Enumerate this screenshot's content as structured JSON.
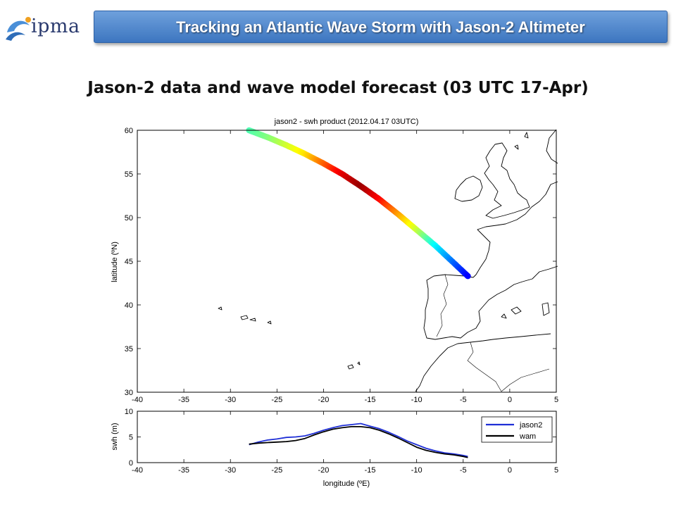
{
  "header": {
    "logo_text": "ipma",
    "banner_title": "Tracking an Atlantic Wave Storm with Jason-2 Altimeter"
  },
  "slide_title": "Jason-2 data and wave model forecast (03 UTC 17-Apr)",
  "colors": {
    "banner_top": "#6ea0dc",
    "banner_bottom": "#3d76c0",
    "jason2_line": "#1f2fd6",
    "wam_line": "#000000",
    "coastline": "#000000"
  },
  "chart_data": [
    {
      "type": "scatter",
      "title": "jason2 - swh product (2012.04.17 03UTC)",
      "xlabel": "",
      "ylabel": "latitude (ºN)",
      "xlim": [
        -40,
        5
      ],
      "ylim": [
        30,
        60
      ],
      "xticks": [
        "-40",
        "-35",
        "-30",
        "-25",
        "-20",
        "-15",
        "-10",
        "-5",
        "0",
        "5"
      ],
      "yticks": [
        "30",
        "35",
        "40",
        "45",
        "50",
        "55",
        "60"
      ],
      "grid": false,
      "colormap": "jet",
      "color_value_range": [
        0,
        8
      ],
      "track": {
        "x": [
          -28.0,
          -26.0,
          -24.0,
          -22.0,
          -20.0,
          -18.0,
          -16.0,
          -14.0,
          -12.0,
          -10.0,
          -8.0,
          -6.0,
          -4.5
        ],
        "y": [
          60.0,
          59.2,
          58.3,
          57.3,
          56.2,
          55.0,
          53.6,
          52.1,
          50.4,
          48.6,
          46.8,
          44.8,
          43.3
        ],
        "swh": [
          3.6,
          4.0,
          4.6,
          5.2,
          6.2,
          7.2,
          7.8,
          7.0,
          5.8,
          4.6,
          3.0,
          1.8,
          1.0
        ]
      }
    },
    {
      "type": "line",
      "title": "",
      "xlabel": "longitude (ºE)",
      "ylabel": "swh (m)",
      "xlim": [
        -40,
        5
      ],
      "ylim": [
        0,
        10
      ],
      "xticks": [
        "-40",
        "-35",
        "-30",
        "-25",
        "-20",
        "-15",
        "-10",
        "-5",
        "0",
        "5"
      ],
      "yticks": [
        "0",
        "5",
        "10"
      ],
      "grid": false,
      "legend": "top-right",
      "series": [
        {
          "name": "jason2",
          "x": [
            -28.0,
            -27.0,
            -26.0,
            -25.0,
            -24.0,
            -23.0,
            -22.0,
            -21.0,
            -20.0,
            -19.0,
            -18.0,
            -17.0,
            -16.0,
            -15.0,
            -14.0,
            -13.0,
            -12.0,
            -11.0,
            -10.0,
            -9.0,
            -8.0,
            -7.0,
            -6.0,
            -5.0,
            -4.5
          ],
          "values": [
            3.5,
            4.0,
            4.4,
            4.6,
            4.9,
            5.0,
            5.2,
            5.7,
            6.3,
            6.8,
            7.2,
            7.4,
            7.6,
            7.1,
            6.6,
            5.9,
            5.1,
            4.2,
            3.5,
            2.8,
            2.3,
            1.9,
            1.7,
            1.4,
            1.2
          ]
        },
        {
          "name": "wam",
          "x": [
            -28.0,
            -27.0,
            -26.0,
            -25.0,
            -24.0,
            -23.0,
            -22.0,
            -21.0,
            -20.0,
            -19.0,
            -18.0,
            -17.0,
            -16.0,
            -15.0,
            -14.0,
            -13.0,
            -12.0,
            -11.0,
            -10.0,
            -9.0,
            -8.0,
            -7.0,
            -6.0,
            -5.0,
            -4.5
          ],
          "values": [
            3.6,
            3.8,
            3.9,
            4.0,
            4.1,
            4.3,
            4.7,
            5.4,
            6.0,
            6.5,
            6.8,
            7.0,
            7.0,
            6.8,
            6.3,
            5.6,
            4.8,
            3.9,
            3.0,
            2.4,
            2.0,
            1.7,
            1.5,
            1.2,
            1.0
          ]
        }
      ]
    }
  ]
}
